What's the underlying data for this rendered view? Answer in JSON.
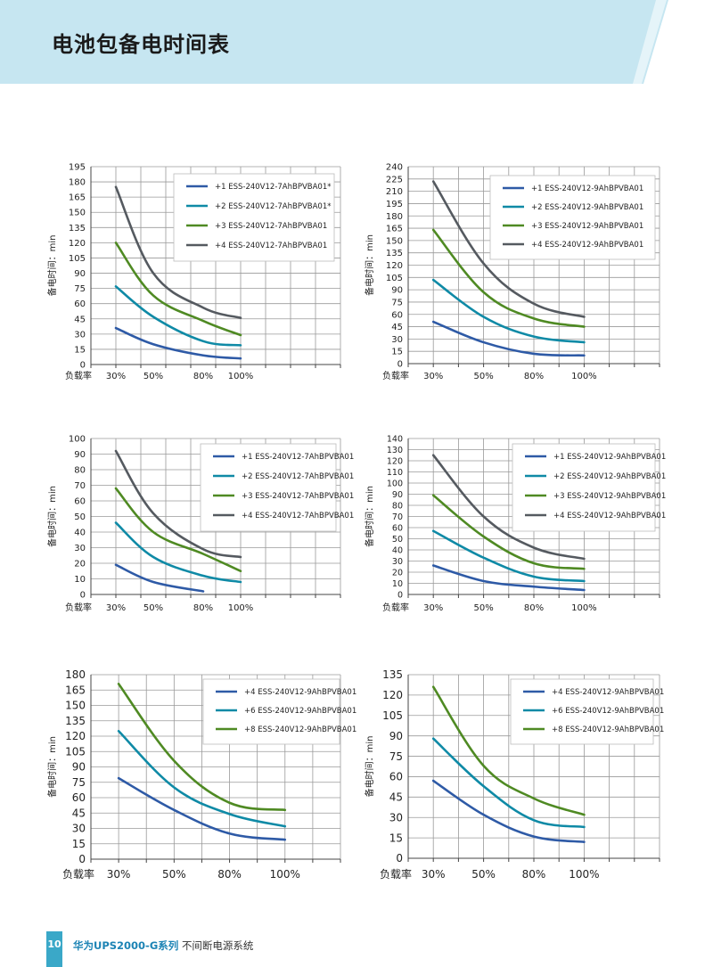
{
  "page": {
    "title": "电池包备电时间表",
    "page_number": "10",
    "footer_brand": "华为UPS2000-G系列",
    "footer_text": "不间断电源系统"
  },
  "colors": {
    "header_bg": "#c6e6f1",
    "accent": "#3aa8c8",
    "series_1": "#2e5aa6",
    "series_2": "#0f8aa6",
    "series_3": "#4f8a23",
    "series_4": "#555a60"
  },
  "chart_data": [
    {
      "type": "line",
      "ylabel": "备电时间：min",
      "xlabel": "负载率",
      "categories": [
        "30%",
        "50%",
        "80%",
        "100%"
      ],
      "ylim": [
        0,
        195
      ],
      "yticks": [
        0,
        15,
        30,
        45,
        60,
        75,
        90,
        105,
        120,
        135,
        150,
        165,
        180,
        195
      ],
      "grid": true,
      "legend": "top-right",
      "series": [
        {
          "name": "+1 ESS-240V12-7AhBPVBA01*",
          "color": "#2e5aa6",
          "values": [
            36,
            20,
            9,
            6
          ]
        },
        {
          "name": "+2 ESS-240V12-7AhBPVBA01*",
          "color": "#0f8aa6",
          "values": [
            77,
            47,
            23,
            19
          ]
        },
        {
          "name": "+3 ESS-240V12-7AhBPVBA01",
          "color": "#4f8a23",
          "values": [
            120,
            68,
            43,
            29
          ]
        },
        {
          "name": "+4 ESS-240V12-7AhBPVBA01",
          "color": "#555a60",
          "values": [
            175,
            90,
            56,
            46
          ]
        }
      ]
    },
    {
      "type": "line",
      "ylabel": "备电时间：min",
      "xlabel": "负载率",
      "categories": [
        "30%",
        "50%",
        "80%",
        "100%"
      ],
      "ylim": [
        0,
        240
      ],
      "yticks": [
        0,
        15,
        30,
        45,
        60,
        75,
        90,
        105,
        120,
        135,
        150,
        165,
        180,
        195,
        210,
        225,
        240
      ],
      "grid": true,
      "legend": "top-right",
      "series": [
        {
          "name": "+1 ESS-240V12-9AhBPVBA01",
          "color": "#2e5aa6",
          "values": [
            51,
            26,
            12,
            10
          ]
        },
        {
          "name": "+2 ESS-240V12-9AhBPVBA01",
          "color": "#0f8aa6",
          "values": [
            102,
            57,
            33,
            26
          ]
        },
        {
          "name": "+3 ESS-240V12-9AhBPVBA01",
          "color": "#4f8a23",
          "values": [
            163,
            87,
            55,
            45
          ]
        },
        {
          "name": "+4 ESS-240V12-9AhBPVBA01",
          "color": "#555a60",
          "values": [
            222,
            122,
            73,
            57
          ]
        }
      ]
    },
    {
      "type": "line",
      "ylabel": "备电时间：min",
      "xlabel": "负载率",
      "categories": [
        "30%",
        "50%",
        "80%",
        "100%"
      ],
      "ylim": [
        0,
        100
      ],
      "yticks": [
        0,
        10,
        20,
        30,
        40,
        50,
        60,
        70,
        80,
        90,
        100
      ],
      "grid": true,
      "legend": "top-right",
      "series": [
        {
          "name": "+1 ESS-240V12-7AhBPVBA01",
          "color": "#2e5aa6",
          "values": [
            19,
            8,
            2,
            null
          ]
        },
        {
          "name": "+2 ESS-240V12-7AhBPVBA01",
          "color": "#0f8aa6",
          "values": [
            46,
            24,
            12,
            8
          ]
        },
        {
          "name": "+3 ESS-240V12-7AhBPVBA01",
          "color": "#4f8a23",
          "values": [
            68,
            40,
            26,
            15
          ]
        },
        {
          "name": "+4 ESS-240V12-7AhBPVBA01",
          "color": "#555a60",
          "values": [
            92,
            52,
            29,
            24
          ]
        }
      ]
    },
    {
      "type": "line",
      "ylabel": "备电时间：min",
      "xlabel": "负载率",
      "categories": [
        "30%",
        "50%",
        "80%",
        "100%"
      ],
      "ylim": [
        0,
        140
      ],
      "yticks": [
        0,
        10,
        20,
        30,
        40,
        50,
        60,
        70,
        80,
        90,
        100,
        110,
        120,
        130,
        140
      ],
      "grid": true,
      "legend": "top-right",
      "series": [
        {
          "name": "+1 ESS-240V12-9AhBPVBA01",
          "color": "#2e5aa6",
          "values": [
            26,
            12,
            7,
            4
          ]
        },
        {
          "name": "+2 ESS-240V12-9AhBPVBA01",
          "color": "#0f8aa6",
          "values": [
            57,
            33,
            16,
            12
          ]
        },
        {
          "name": "+3 ESS-240V12-9AhBPVBA01",
          "color": "#4f8a23",
          "values": [
            89,
            52,
            28,
            23
          ]
        },
        {
          "name": "+4 ESS-240V12-9AhBPVBA01",
          "color": "#555a60",
          "values": [
            125,
            70,
            42,
            32
          ]
        }
      ]
    },
    {
      "type": "line",
      "ylabel": "备电时间：min",
      "xlabel": "负载率",
      "categories": [
        "30%",
        "50%",
        "80%",
        "100%"
      ],
      "ylim": [
        0,
        180
      ],
      "yticks": [
        0,
        15,
        30,
        45,
        60,
        75,
        90,
        105,
        120,
        135,
        150,
        165,
        180
      ],
      "grid": true,
      "legend": "top-right",
      "series": [
        {
          "name": "+4 ESS-240V12-9AhBPVBA01",
          "color": "#2e5aa6",
          "values": [
            79,
            48,
            25,
            19
          ]
        },
        {
          "name": "+6 ESS-240V12-9AhBPVBA01",
          "color": "#0f8aa6",
          "values": [
            125,
            70,
            44,
            32
          ]
        },
        {
          "name": "+8 ESS-240V12-9AhBPVBA01",
          "color": "#4f8a23",
          "values": [
            171,
            96,
            55,
            48
          ]
        }
      ]
    },
    {
      "type": "line",
      "ylabel": "备电时间：min",
      "xlabel": "负载率",
      "categories": [
        "30%",
        "50%",
        "80%",
        "100%"
      ],
      "ylim": [
        0,
        135
      ],
      "yticks": [
        0,
        15,
        30,
        45,
        60,
        75,
        90,
        105,
        120,
        135
      ],
      "grid": true,
      "legend": "top-right",
      "series": [
        {
          "name": "+4 ESS-240V12-9AhBPVBA01",
          "color": "#2e5aa6",
          "values": [
            57,
            32,
            16,
            12
          ]
        },
        {
          "name": "+6 ESS-240V12-9AhBPVBA01",
          "color": "#0f8aa6",
          "values": [
            88,
            53,
            28,
            23
          ]
        },
        {
          "name": "+8 ESS-240V12-9AhBPVBA01",
          "color": "#4f8a23",
          "values": [
            126,
            68,
            44,
            32
          ]
        }
      ]
    }
  ]
}
